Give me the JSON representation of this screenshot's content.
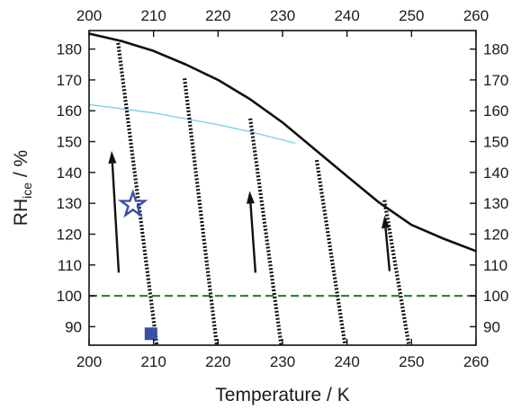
{
  "chart_data": {
    "type": "line",
    "xlabel": "Temperature / K",
    "ylabel_main": "RH",
    "ylabel_sub": "ice",
    "ylabel_tail": " / %",
    "xlim": [
      200,
      260
    ],
    "ylim": [
      84,
      186
    ],
    "xticks": [
      200,
      210,
      220,
      230,
      240,
      250,
      260
    ],
    "yticks": [
      90,
      100,
      110,
      120,
      130,
      140,
      150,
      160,
      170,
      180
    ],
    "grid": false,
    "legend": "none",
    "colors": {
      "saturation": "#111111",
      "threshold": "#7fd0e8",
      "ice_saturation": "#2a8a3a",
      "isopleth": "#111111",
      "arrow": "#111111",
      "markers": "#3a4fa8"
    },
    "series": [
      {
        "style": "solid-thick",
        "points": [
          [
            200,
            185
          ],
          [
            205,
            182.6
          ],
          [
            210,
            179.4
          ],
          [
            215,
            175
          ],
          [
            220,
            170
          ],
          [
            225,
            163.7
          ],
          [
            230,
            156.2
          ],
          [
            235,
            147.5
          ],
          [
            240,
            138.8
          ],
          [
            245,
            130.2
          ],
          [
            250,
            123
          ],
          [
            255,
            118.5
          ],
          [
            260,
            114.5
          ]
        ]
      },
      {
        "style": "solid-thin",
        "points": [
          [
            200,
            162
          ],
          [
            210,
            159.3
          ],
          [
            220,
            155.5
          ],
          [
            225,
            153.2
          ],
          [
            232,
            149.5
          ]
        ]
      },
      {
        "style": "dashed",
        "points": [
          [
            200,
            100
          ],
          [
            260,
            100
          ]
        ]
      },
      {
        "style": "dotted-thick",
        "points": [
          [
            204.5,
            182
          ],
          [
            210.5,
            84
          ]
        ]
      },
      {
        "style": "dotted-thick",
        "points": [
          [
            214.8,
            170.5
          ],
          [
            219.8,
            84
          ]
        ]
      },
      {
        "style": "dotted-thick",
        "points": [
          [
            225,
            157.5
          ],
          [
            229.8,
            84
          ]
        ]
      },
      {
        "style": "dotted-thick",
        "points": [
          [
            235.3,
            144
          ],
          [
            239.7,
            84
          ]
        ]
      },
      {
        "style": "dotted-thick",
        "points": [
          [
            245.8,
            131
          ],
          [
            249.6,
            84
          ]
        ]
      }
    ],
    "arrows": [
      {
        "from": [
          204.6,
          107.5
        ],
        "to": [
          203.5,
          147
        ]
      },
      {
        "from": [
          225.8,
          107.5
        ],
        "to": [
          224.9,
          134
        ]
      },
      {
        "from": [
          246.6,
          108
        ],
        "to": [
          245.8,
          126
        ]
      }
    ],
    "markers": [
      {
        "shape": "star",
        "x": 206.8,
        "y": 129.5
      },
      {
        "shape": "square",
        "x": 209.6,
        "y": 87.7
      }
    ]
  }
}
